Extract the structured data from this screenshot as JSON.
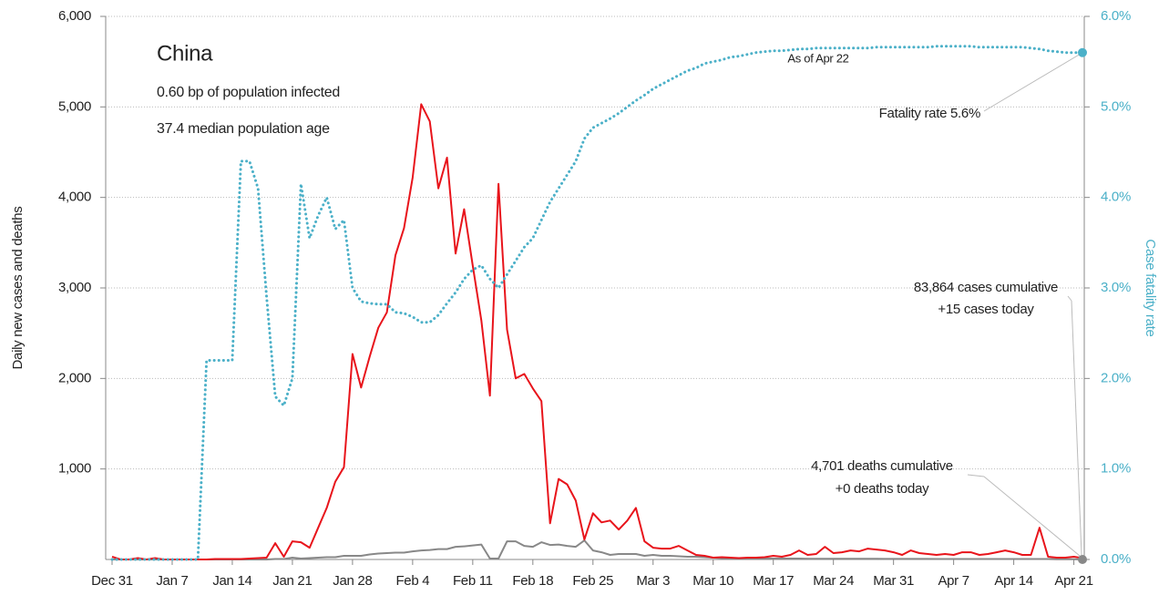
{
  "chart_data": {
    "type": "line",
    "title": "China",
    "subtitle": [
      "0.60 bp of population infected",
      "37.4 median population age"
    ],
    "y_label": "Daily new cases and deaths",
    "y2_label": "Case fatality rate",
    "annotations": [
      "As of Apr 22",
      "Fatality rate 5.6%",
      "83,864 cases cumulative",
      "+15 cases today",
      "4,701 deaths cumulative",
      "+0 deaths today"
    ],
    "categories": [
      "Dec 31",
      null,
      null,
      null,
      null,
      null,
      null,
      "Jan 7",
      null,
      null,
      null,
      null,
      null,
      null,
      "Jan 14",
      null,
      null,
      null,
      null,
      null,
      null,
      "Jan 21",
      null,
      null,
      null,
      null,
      null,
      null,
      "Jan 28",
      null,
      null,
      null,
      null,
      null,
      null,
      "Feb 4",
      null,
      null,
      null,
      null,
      null,
      null,
      "Feb 11",
      null,
      null,
      null,
      null,
      null,
      null,
      "Feb 18",
      null,
      null,
      null,
      null,
      null,
      null,
      "Feb 25",
      null,
      null,
      null,
      null,
      null,
      null,
      "Mar 3",
      null,
      null,
      null,
      null,
      null,
      null,
      "Mar 10",
      null,
      null,
      null,
      null,
      null,
      null,
      "Mar 17",
      null,
      null,
      null,
      null,
      null,
      null,
      "Mar 24",
      null,
      null,
      null,
      null,
      null,
      null,
      "Mar 31",
      null,
      null,
      null,
      null,
      null,
      null,
      "Apr 7",
      null,
      null,
      null,
      null,
      null,
      null,
      "Apr 14",
      null,
      null,
      null,
      null,
      null,
      null,
      "Apr 21",
      null
    ],
    "series": [
      {
        "color": "#e8141b",
        "values": [
          30,
          0,
          0,
          15,
          0,
          15,
          0,
          0,
          0,
          0,
          0,
          0,
          5,
          5,
          5,
          5,
          10,
          15,
          20,
          180,
          30,
          200,
          190,
          130,
          350,
          570,
          860,
          1020,
          2270,
          1900,
          2240,
          2560,
          2730,
          3360,
          3660,
          4220,
          5030,
          4840,
          4100,
          4440,
          3380,
          3870,
          3250,
          2640,
          1810,
          4150,
          2540,
          2000,
          2050,
          1890,
          1750,
          400,
          890,
          830,
          650,
          220,
          510,
          410,
          430,
          330,
          430,
          570,
          200,
          130,
          120,
          120,
          150,
          100,
          50,
          40,
          20,
          25,
          20,
          15,
          20,
          20,
          25,
          40,
          30,
          50,
          100,
          50,
          60,
          140,
          70,
          80,
          100,
          90,
          120,
          110,
          100,
          80,
          50,
          100,
          70,
          60,
          50,
          60,
          50,
          80,
          80,
          50,
          60,
          80,
          100,
          80,
          50,
          50,
          350,
          30,
          20,
          20,
          30,
          15
        ]
      },
      {
        "color": "#888888",
        "values": [
          0,
          0,
          0,
          0,
          0,
          0,
          0,
          0,
          0,
          0,
          0,
          0,
          0,
          0,
          0,
          0,
          0,
          0,
          0,
          5,
          5,
          20,
          10,
          15,
          20,
          25,
          25,
          40,
          40,
          40,
          55,
          65,
          70,
          75,
          75,
          90,
          100,
          105,
          115,
          115,
          140,
          145,
          155,
          165,
          10,
          10,
          200,
          200,
          150,
          140,
          190,
          160,
          165,
          150,
          140,
          210,
          100,
          80,
          50,
          60,
          60,
          60,
          40,
          50,
          40,
          40,
          35,
          30,
          30,
          25,
          20,
          15,
          15,
          12,
          12,
          10,
          10,
          10,
          10,
          10,
          10,
          8,
          8,
          8,
          8,
          8,
          8,
          8,
          8,
          8,
          6,
          6,
          6,
          6,
          6,
          6,
          5,
          5,
          5,
          5,
          5,
          5,
          5,
          5,
          5,
          5,
          5,
          5,
          5,
          5,
          3,
          3,
          3,
          0
        ]
      },
      {
        "color": "#4bb0c8",
        "axis": "y2",
        "dotted": true,
        "values": [
          0,
          0,
          0,
          0,
          0,
          0,
          0,
          0,
          0,
          0,
          0,
          2.2,
          2.2,
          2.2,
          2.2,
          4.4,
          4.4,
          4.1,
          2.9,
          1.8,
          1.7,
          2.0,
          4.15,
          3.55,
          3.8,
          4.0,
          3.65,
          3.75,
          3.0,
          2.85,
          2.83,
          2.82,
          2.82,
          2.73,
          2.72,
          2.68,
          2.62,
          2.62,
          2.7,
          2.83,
          2.95,
          3.1,
          3.2,
          3.25,
          3.1,
          3.0,
          3.15,
          3.3,
          3.45,
          3.55,
          3.75,
          3.95,
          4.1,
          4.25,
          4.4,
          4.65,
          4.77,
          4.82,
          4.87,
          4.93,
          5.0,
          5.07,
          5.13,
          5.2,
          5.25,
          5.3,
          5.35,
          5.4,
          5.43,
          5.48,
          5.5,
          5.52,
          5.55,
          5.56,
          5.58,
          5.6,
          5.61,
          5.62,
          5.62,
          5.63,
          5.64,
          5.64,
          5.65,
          5.65,
          5.65,
          5.65,
          5.65,
          5.65,
          5.65,
          5.66,
          5.66,
          5.66,
          5.66,
          5.66,
          5.66,
          5.66,
          5.67,
          5.67,
          5.67,
          5.67,
          5.67,
          5.66,
          5.66,
          5.66,
          5.66,
          5.66,
          5.66,
          5.65,
          5.64,
          5.62,
          5.61,
          5.6,
          5.6,
          5.6
        ]
      }
    ],
    "ylim": [
      0,
      6000
    ],
    "yticks": [
      {
        "value": 1000,
        "label": "1,000"
      },
      {
        "value": 2000,
        "label": "2,000"
      },
      {
        "value": 3000,
        "label": "3,000"
      },
      {
        "value": 4000,
        "label": "4,000"
      },
      {
        "value": 5000,
        "label": "5,000"
      },
      {
        "value": 6000,
        "label": "6,000"
      }
    ],
    "y2lim": [
      0,
      6
    ],
    "y2ticks": [
      {
        "value": 0,
        "label": "0.0%"
      },
      {
        "value": 1,
        "label": "1.0%"
      },
      {
        "value": 2,
        "label": "2.0%"
      },
      {
        "value": 3,
        "label": "3.0%"
      },
      {
        "value": 4,
        "label": "4.0%"
      },
      {
        "value": 5,
        "label": "5.0%"
      },
      {
        "value": 6,
        "label": "6.0%"
      }
    ],
    "grid": true
  }
}
